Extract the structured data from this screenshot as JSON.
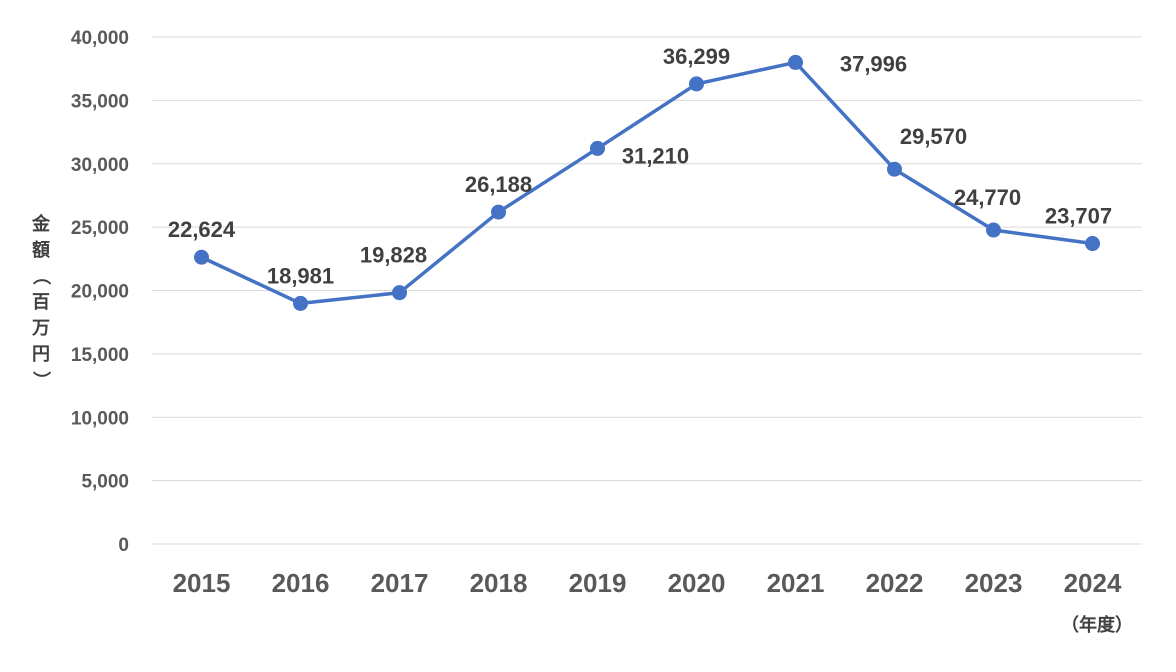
{
  "chart_data": {
    "type": "line",
    "categories": [
      "2015",
      "2016",
      "2017",
      "2018",
      "2019",
      "2020",
      "2021",
      "2022",
      "2023",
      "2024"
    ],
    "series": [
      {
        "values": [
          22624,
          18981,
          19828,
          26188,
          31210,
          36299,
          37996,
          29570,
          24770,
          23707
        ],
        "data_labels": [
          "22,624",
          "18,981",
          "19,828",
          "26,188",
          "31,210",
          "36,299",
          "37,996",
          "29,570",
          "24,770",
          "23,707"
        ],
        "color": "#4472c4"
      }
    ],
    "y_ticks": [
      "0",
      "5,000",
      "10,000",
      "15,000",
      "20,000",
      "25,000",
      "30,000",
      "35,000",
      "40,000"
    ],
    "ylim": [
      0,
      40000
    ],
    "ylabel": "金額（百万円）",
    "xlabel_unit": "（年度）",
    "grid": true,
    "legend": "none"
  }
}
